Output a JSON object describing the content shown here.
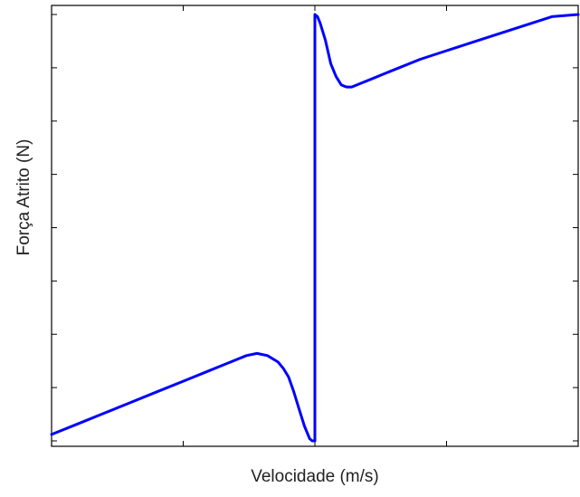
{
  "chart_data": {
    "type": "line",
    "xlabel": "Velocidade (m/s)",
    "ylabel": "Força Atrito (N)",
    "xlim": [
      -1,
      1
    ],
    "ylim": [
      -1,
      1
    ],
    "x_tick_count": 5,
    "y_tick_count": 9,
    "tick_labels_shown": false,
    "grid": false,
    "series": [
      {
        "color": "#0000ff",
        "x": [
          -1.0,
          -0.9,
          -0.8,
          -0.7,
          -0.6,
          -0.5,
          -0.4,
          -0.3,
          -0.26,
          -0.22,
          -0.18,
          -0.14,
          -0.12,
          -0.1,
          -0.08,
          -0.06,
          -0.04,
          -0.02,
          -0.01,
          0.0,
          0.0,
          0.01,
          0.02,
          0.04,
          0.06,
          0.08,
          0.1,
          0.12,
          0.14,
          0.18,
          0.22,
          0.26,
          0.3,
          0.4,
          0.5,
          0.6,
          0.7,
          0.8,
          0.9,
          1.0
        ],
        "y": [
          -0.97,
          -0.92,
          -0.87,
          -0.82,
          -0.77,
          -0.72,
          -0.67,
          -0.62,
          -0.6,
          -0.59,
          -0.6,
          -0.63,
          -0.66,
          -0.7,
          -0.77,
          -0.85,
          -0.93,
          -0.99,
          -1.0,
          -1.0,
          1.0,
          0.99,
          0.96,
          0.88,
          0.77,
          0.71,
          0.67,
          0.66,
          0.66,
          0.68,
          0.7,
          0.72,
          0.74,
          0.79,
          0.83,
          0.87,
          0.91,
          0.95,
          0.99,
          1.0
        ]
      }
    ]
  }
}
